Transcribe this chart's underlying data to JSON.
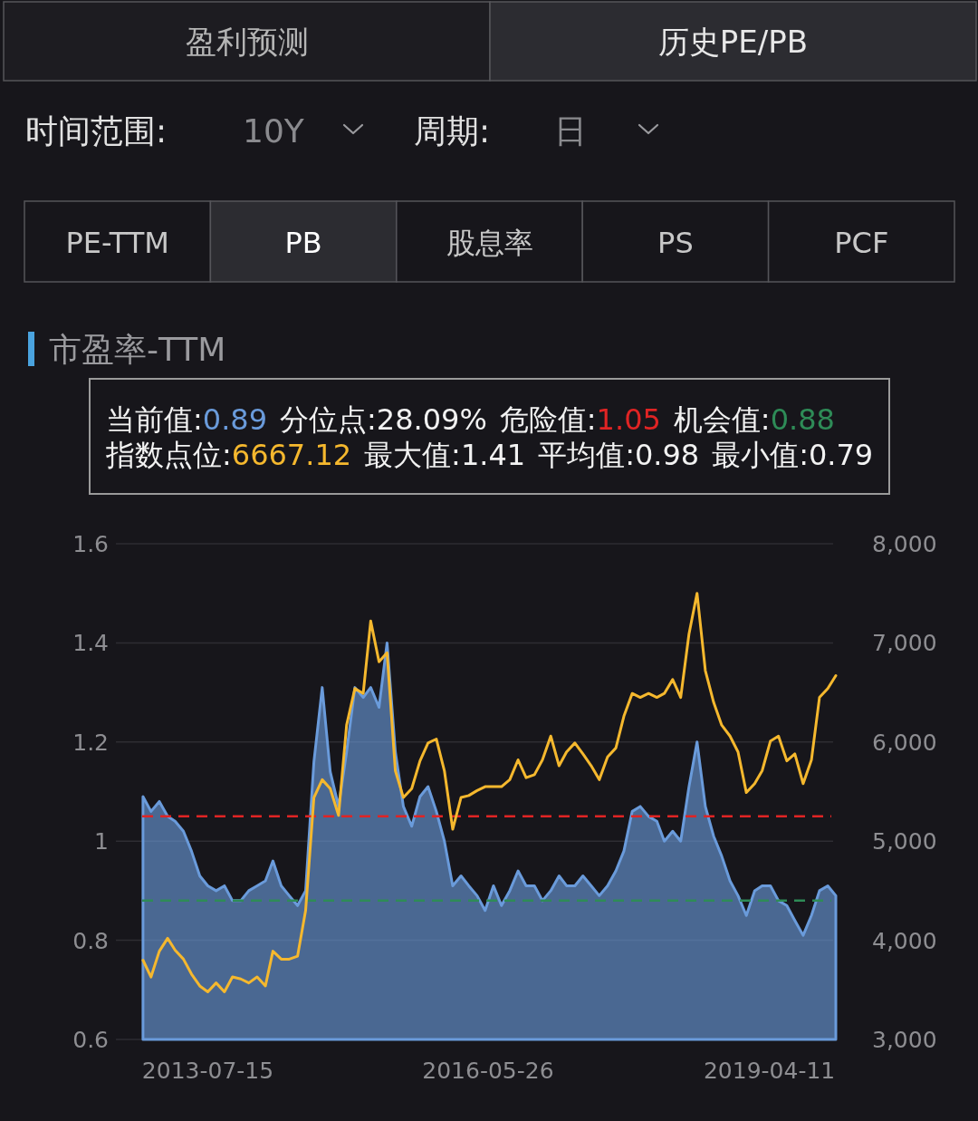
{
  "chart_data": {
    "type": "area",
    "title": "市盈率-TTM",
    "annotations": [
      "盈利预测",
      "历史PE/PB",
      "时间范围:",
      "10Y",
      "周期:",
      "日",
      "PE-TTM",
      "PB",
      "股息率",
      "PS",
      "PCF",
      "当前值:0.89",
      "分位点:28.09%",
      "危险值:1.05",
      "机会值:0.88",
      "指数点位:6667.12",
      "最大值:1.41",
      "平均值:0.98",
      "最小值:0.79"
    ],
    "x": [
      "2012-11-15",
      "2012-12-15",
      "2013-01-15",
      "2013-02-15",
      "2013-03-15",
      "2013-04-15",
      "2013-05-15",
      "2013-06-15",
      "2013-07-15",
      "2013-08-15",
      "2013-09-15",
      "2013-10-15",
      "2013-11-15",
      "2013-12-15",
      "2014-01-15",
      "2014-02-15",
      "2014-03-15",
      "2014-04-15",
      "2014-05-15",
      "2014-06-15",
      "2014-07-15",
      "2014-08-15",
      "2014-09-15",
      "2014-10-15",
      "2014-11-15",
      "2014-12-15",
      "2015-01-15",
      "2015-02-15",
      "2015-03-15",
      "2015-04-15",
      "2015-05-15",
      "2015-06-15",
      "2015-07-15",
      "2015-08-15",
      "2015-09-15",
      "2015-10-15",
      "2015-11-15",
      "2015-12-15",
      "2016-01-15",
      "2016-02-15",
      "2016-03-15",
      "2016-04-15",
      "2016-05-15",
      "2016-06-15",
      "2016-07-15",
      "2016-08-15",
      "2016-09-15",
      "2016-10-15",
      "2016-11-15",
      "2016-12-15",
      "2017-01-15",
      "2017-02-15",
      "2017-03-15",
      "2017-04-15",
      "2017-05-15",
      "2017-06-15",
      "2017-07-15",
      "2017-08-15",
      "2017-09-15",
      "2017-10-15",
      "2017-11-15",
      "2017-12-15",
      "2018-01-15",
      "2018-02-15",
      "2018-03-15",
      "2018-04-15",
      "2018-05-15",
      "2018-06-15",
      "2018-07-15",
      "2018-08-15",
      "2018-09-15",
      "2018-10-15",
      "2018-11-15",
      "2018-12-15",
      "2019-01-15",
      "2019-02-15",
      "2019-03-15",
      "2019-04-15",
      "2019-05-15",
      "2019-06-15",
      "2019-07-15",
      "2019-08-15",
      "2019-09-15",
      "2019-10-15",
      "2019-11-15",
      "2019-12-15"
    ],
    "series": [
      {
        "color": "#6a9bdb",
        "values": [
          1.09,
          1.06,
          1.08,
          1.05,
          1.04,
          1.02,
          0.98,
          0.93,
          0.91,
          0.9,
          0.91,
          0.88,
          0.88,
          0.9,
          0.91,
          0.92,
          0.96,
          0.91,
          0.89,
          0.87,
          0.9,
          1.16,
          1.31,
          1.14,
          1.07,
          1.18,
          1.31,
          1.29,
          1.31,
          1.27,
          1.4,
          1.18,
          1.07,
          1.03,
          1.09,
          1.11,
          1.06,
          1.0,
          0.91,
          0.93,
          0.91,
          0.89,
          0.86,
          0.91,
          0.87,
          0.9,
          0.94,
          0.91,
          0.91,
          0.88,
          0.9,
          0.93,
          0.91,
          0.91,
          0.93,
          0.91,
          0.89,
          0.91,
          0.94,
          0.98,
          1.06,
          1.07,
          1.05,
          1.04,
          1.0,
          1.02,
          1.0,
          1.11,
          1.2,
          1.07,
          1.01,
          0.97,
          0.92,
          0.89,
          0.85,
          0.9,
          0.91,
          0.91,
          0.88,
          0.87,
          0.84,
          0.81,
          0.85,
          0.9,
          0.91,
          0.89
        ]
      },
      {
        "type": "line",
        "axis": "y2",
        "color": "#f5b82e",
        "values": [
          3800,
          3630,
          3890,
          4020,
          3900,
          3810,
          3660,
          3540,
          3480,
          3570,
          3480,
          3630,
          3610,
          3570,
          3630,
          3540,
          3890,
          3810,
          3810,
          3840,
          4300,
          5440,
          5620,
          5530,
          5260,
          6170,
          6540,
          6490,
          7220,
          6810,
          6900,
          5710,
          5440,
          5530,
          5810,
          5990,
          6030,
          5710,
          5120,
          5440,
          5460,
          5510,
          5550,
          5550,
          5550,
          5620,
          5820,
          5640,
          5670,
          5820,
          6060,
          5760,
          5900,
          5990,
          5880,
          5760,
          5620,
          5850,
          5940,
          6260,
          6490,
          6450,
          6490,
          6450,
          6490,
          6630,
          6450,
          7090,
          7500,
          6720,
          6400,
          6170,
          6060,
          5900,
          5490,
          5580,
          5710,
          6010,
          6060,
          5810,
          5880,
          5580,
          5820,
          6450,
          6540,
          6670
        ]
      }
    ],
    "xlim": [
      "2012-11-12",
      "2019-12-15"
    ],
    "xticks": [
      "2013-07-15",
      "2016-05-26",
      "2019-04-11"
    ],
    "ylim": [
      0.6,
      1.6
    ],
    "yticks": [
      0.6,
      0.8,
      1,
      1.2,
      1.4,
      1.6
    ],
    "y2lim": [
      3000,
      8000
    ],
    "y2ticks": [
      {
        "value": 3000,
        "label": "3,000"
      },
      {
        "value": 4000,
        "label": "4,000"
      },
      {
        "value": 5000,
        "label": "5,000"
      },
      {
        "value": 6000,
        "label": "6,000"
      },
      {
        "value": 7000,
        "label": "7,000"
      },
      {
        "value": 8000,
        "label": "8,000"
      }
    ],
    "ref_lines": [
      {
        "axis": "y",
        "value": 1.05,
        "color": "#e02424",
        "line_style": "dashed"
      },
      {
        "axis": "y",
        "value": 0.88,
        "color": "#2e8b57",
        "line_style": "dashed"
      }
    ],
    "grid": "y"
  }
}
